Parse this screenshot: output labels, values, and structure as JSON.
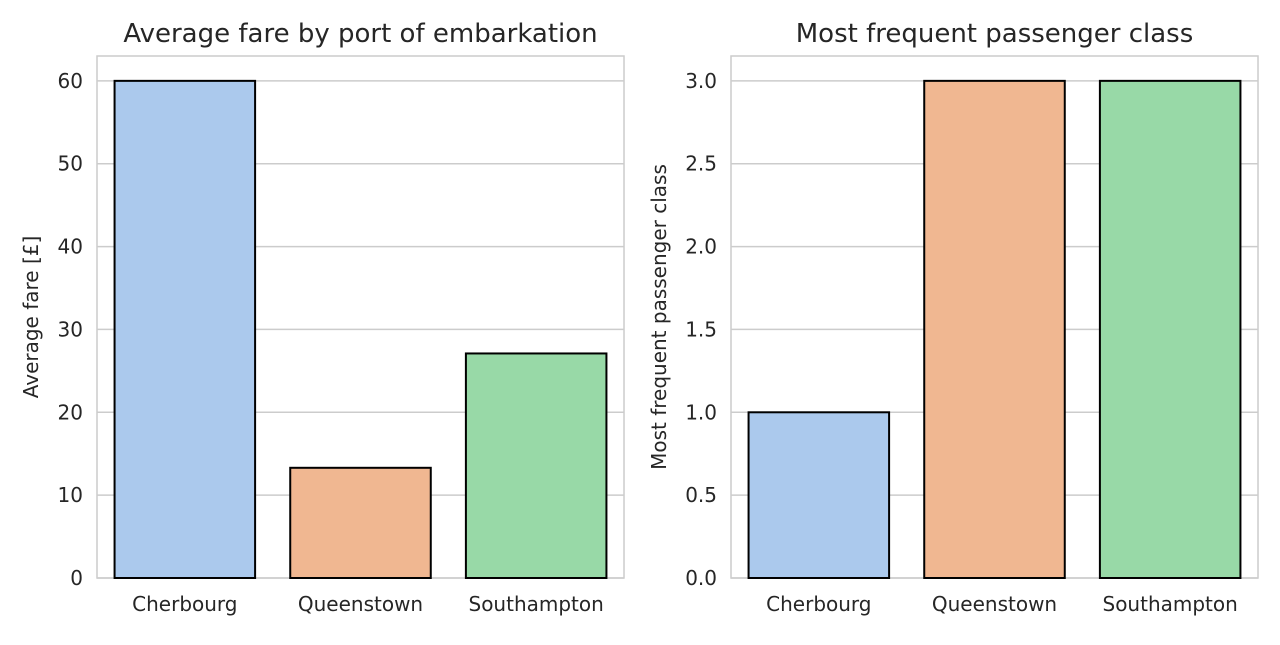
{
  "chart_data": [
    {
      "type": "bar",
      "title": "Average fare by port of embarkation",
      "xlabel": "",
      "ylabel": "Average fare [£]",
      "categories": [
        "Cherbourg",
        "Queenstown",
        "Southampton"
      ],
      "values": [
        60.0,
        13.3,
        27.1
      ],
      "ylim": [
        0,
        63
      ],
      "yticks": [
        0,
        10,
        20,
        30,
        40,
        50,
        60
      ],
      "ytick_labels": [
        "0",
        "10",
        "20",
        "30",
        "40",
        "50",
        "60"
      ],
      "colors": [
        "#abc9ed",
        "#f0b791",
        "#98d9a7"
      ],
      "grid": true
    },
    {
      "type": "bar",
      "title": "Most frequent passenger class",
      "xlabel": "",
      "ylabel": "Most frequent passenger class",
      "categories": [
        "Cherbourg",
        "Queenstown",
        "Southampton"
      ],
      "values": [
        1.0,
        3.0,
        3.0
      ],
      "ylim": [
        0,
        3.15
      ],
      "yticks": [
        0.0,
        0.5,
        1.0,
        1.5,
        2.0,
        2.5,
        3.0
      ],
      "ytick_labels": [
        "0.0",
        "0.5",
        "1.0",
        "1.5",
        "2.0",
        "2.5",
        "3.0"
      ],
      "colors": [
        "#abc9ed",
        "#f0b791",
        "#98d9a7"
      ],
      "grid": true
    }
  ]
}
